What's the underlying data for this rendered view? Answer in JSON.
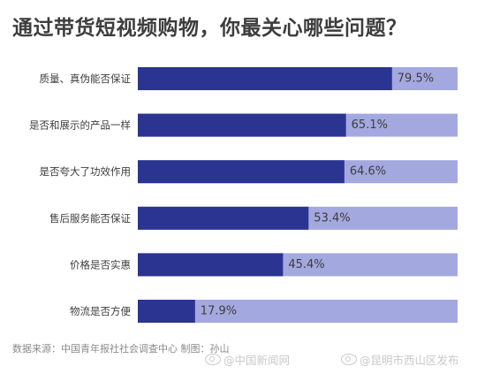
{
  "chart_data": {
    "type": "bar",
    "orientation": "horizontal",
    "title": "通过带货短视频购物，你最关心哪些问题？",
    "categories": [
      "质量、真伪能否保证",
      "是否和展示的产品一样",
      "是否夸大了功效作用",
      "售后服务能否保证",
      "价格是否实惠",
      "物流是否方便"
    ],
    "values": [
      79.5,
      65.1,
      64.6,
      53.4,
      45.4,
      17.9
    ],
    "value_labels": [
      "79.5%",
      "65.1%",
      "64.6%",
      "53.4%",
      "45.4%",
      "17.9%"
    ],
    "xlim": [
      0,
      100
    ],
    "grid": false,
    "colors": {
      "bar": "#2b3490",
      "track": "#a3a8df",
      "label_text": "#3d3d3d",
      "value_text": "#3d3d3d"
    }
  },
  "footer": {
    "source": "数据来源：中国青年报社社会调查中心  制图：孙山"
  },
  "watermarks": [
    "@中国新闻网",
    "@昆明市西山区发布"
  ]
}
